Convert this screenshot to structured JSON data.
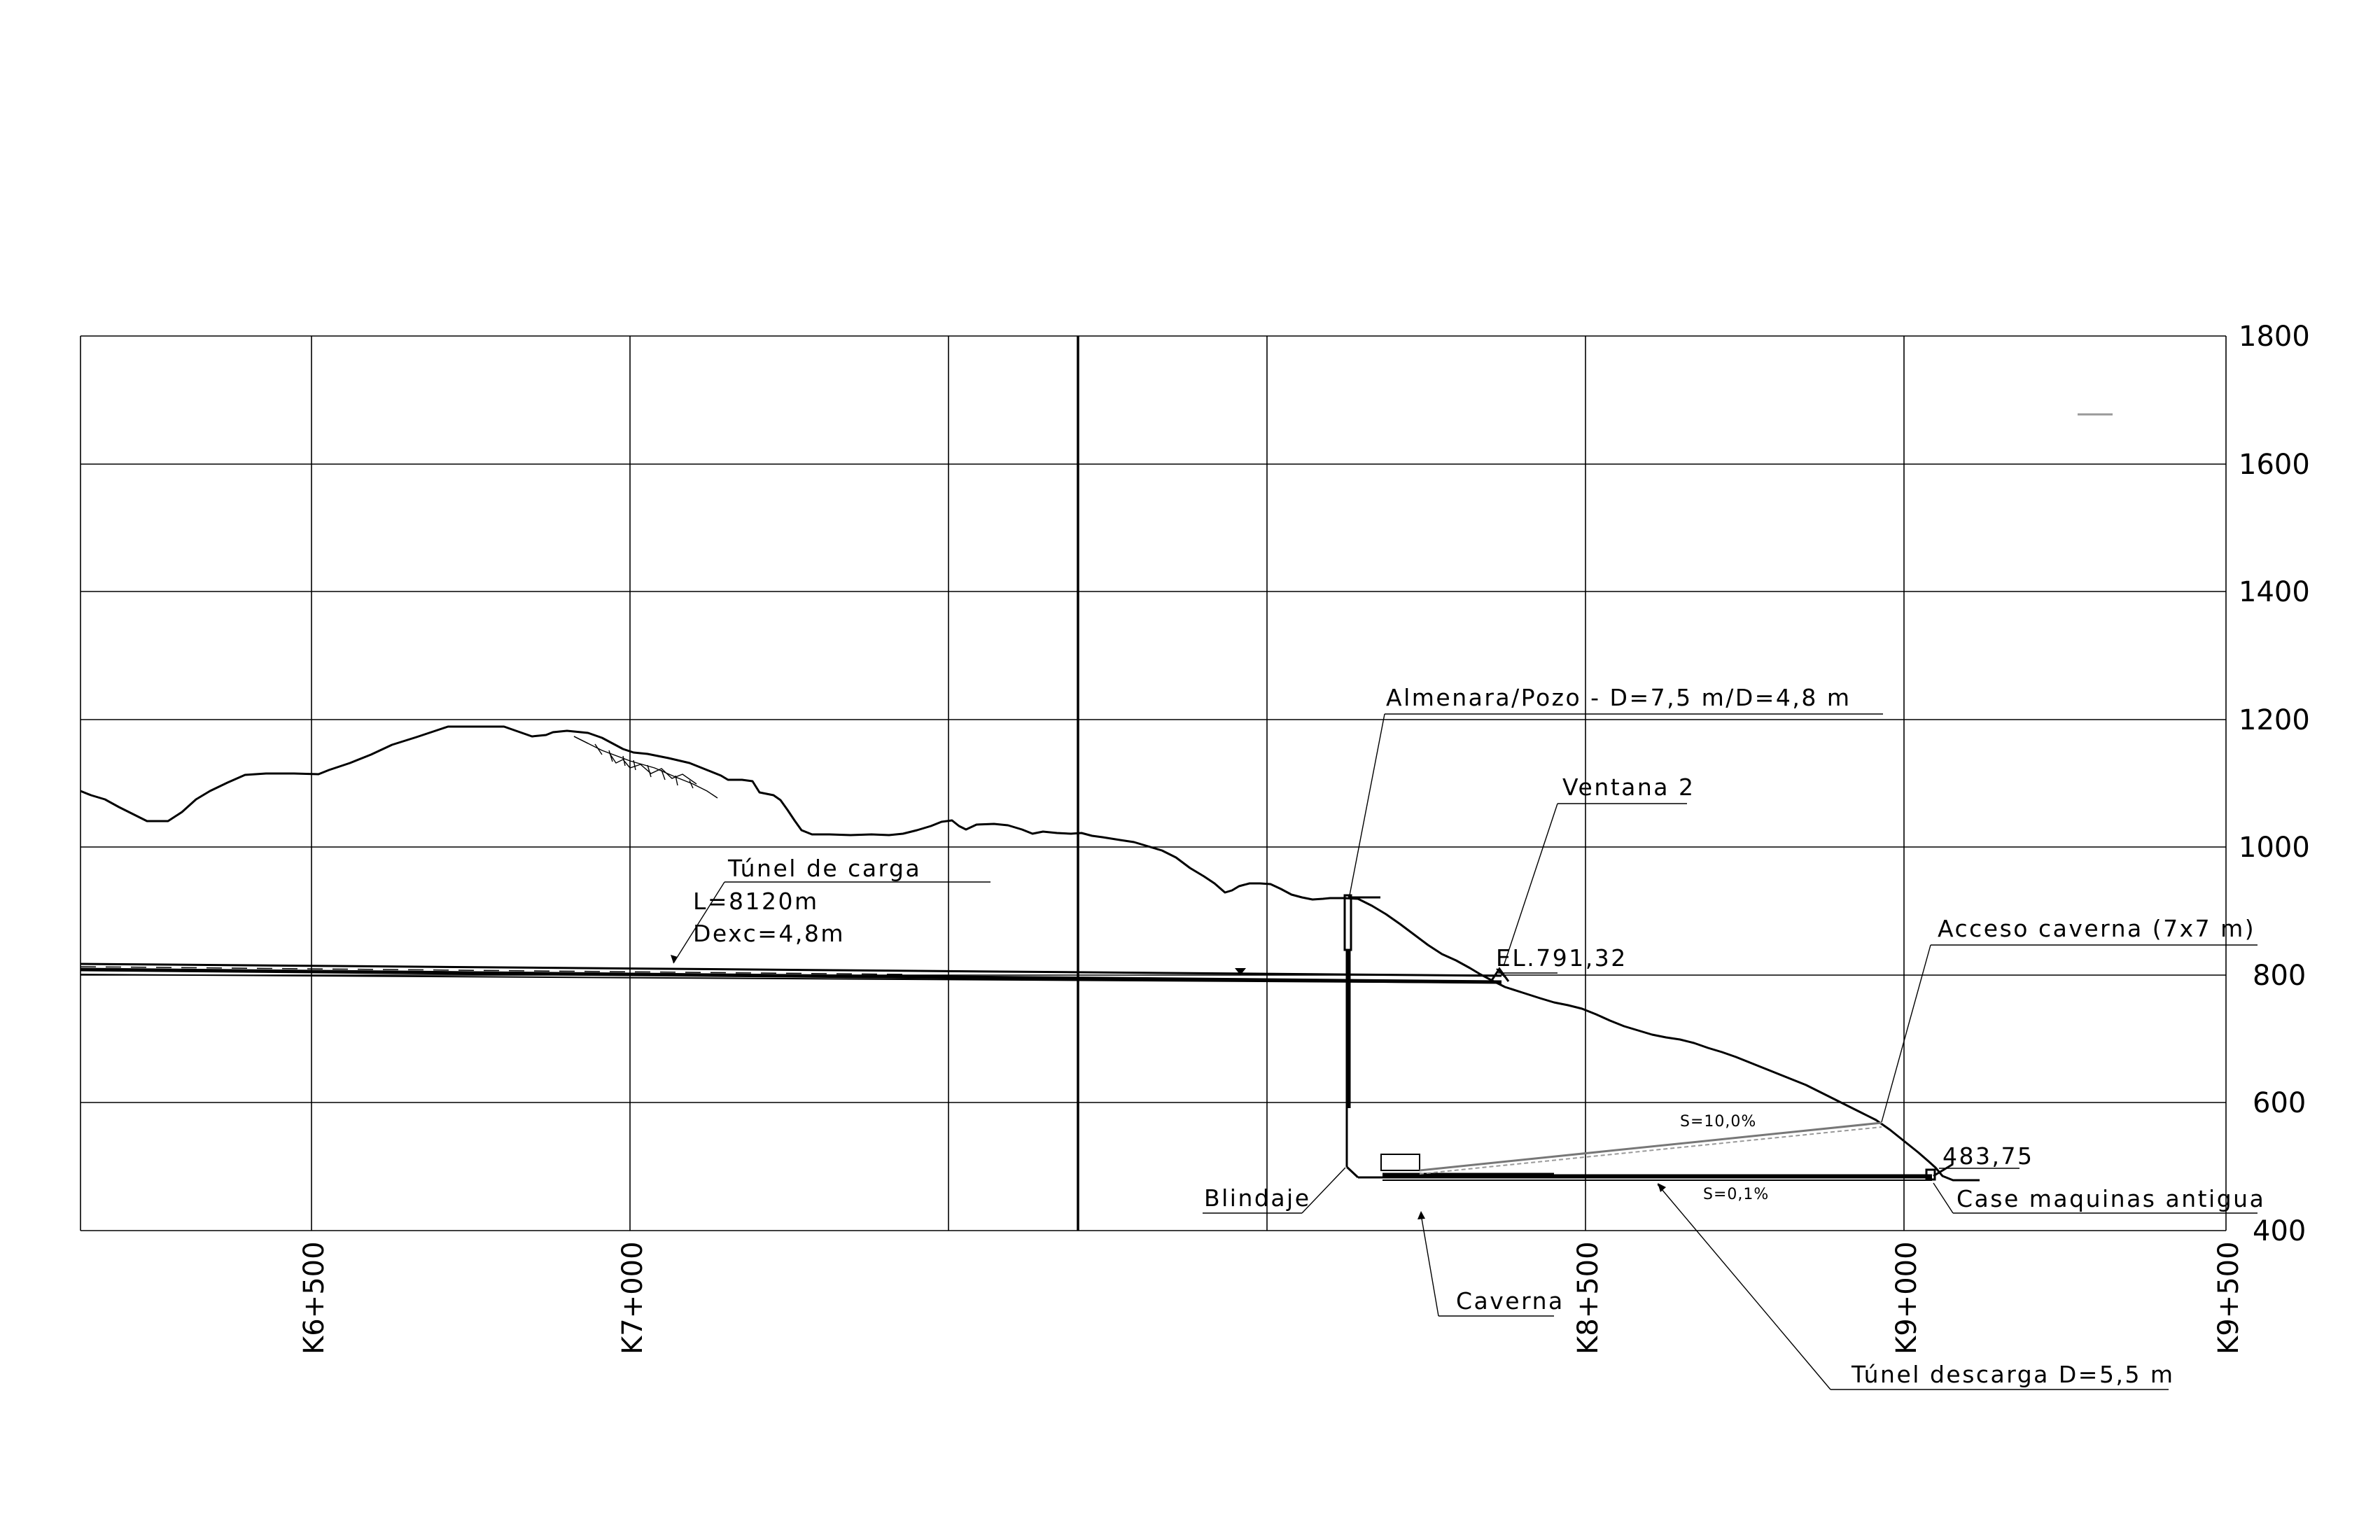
{
  "elevation_axis": {
    "ticks": [
      "1800",
      "1600",
      "1400",
      "1200",
      "1000",
      "800",
      "600",
      "400"
    ]
  },
  "chainage_axis": {
    "ticks": [
      "K6+500",
      "K7+000",
      "K8+500",
      "K9+000",
      "K9+500"
    ]
  },
  "annotations": {
    "tunel_carga_title": "Túnel de carga",
    "tunel_carga_length": "L=8120m",
    "tunel_carga_dexc": "Dexc=4,8m",
    "almenara": "Almenara/Pozo  -  D=7,5  m/D=4,8  m",
    "ventana": "Ventana  2",
    "elevation_ventana": "EL.791,32",
    "acceso_caverna": "Acceso  caverna  (7x7  m)",
    "slope_acceso": "S=10,0%",
    "elevation_casa": "483,75",
    "casa_maquinas": "Case  maquinas  antigua",
    "slope_descarga": "S=0,1%",
    "blindaje": "Blindaje",
    "caverna": "Caverna",
    "tunel_descarga": "Túnel  descarga  D=5,5  m"
  },
  "colors": {
    "line": "#000000",
    "background": "#ffffff"
  }
}
